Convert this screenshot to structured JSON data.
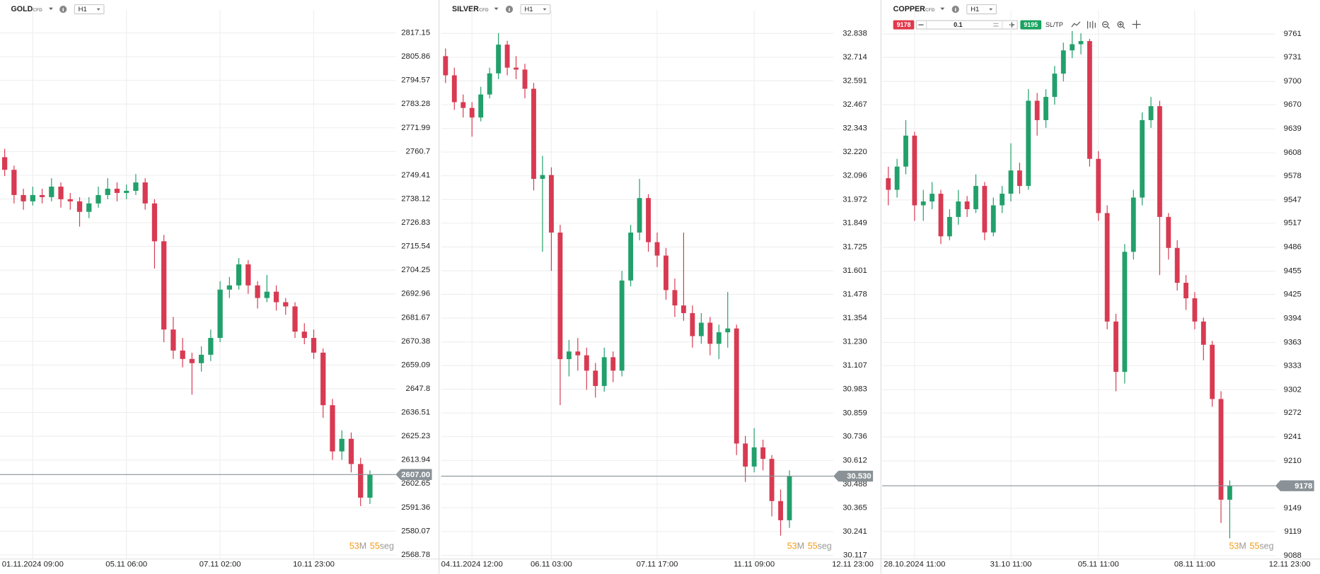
{
  "countdown": {
    "minutes": 53,
    "minutes_unit": "M",
    "seconds": 55,
    "seconds_unit": "seg"
  },
  "trade_panel": {
    "sell_price": 9178,
    "quantity": 0.1,
    "buy_price": 9195,
    "sl_tp": "SL/TP"
  },
  "chart_data": [
    {
      "type": "candlestick",
      "title": "GOLD",
      "instrument_type": "CFD",
      "timeframe": "H1",
      "up_color": "#22a06b",
      "down_color": "#d83a52",
      "grid": true,
      "last_price": {
        "value": 2607,
        "label": "2607.00"
      },
      "categories": [
        null,
        null,
        null,
        "01.11.2024 09:00",
        null,
        null,
        null,
        null,
        null,
        null,
        null,
        null,
        null,
        "05.11 06:00",
        null,
        null,
        null,
        null,
        null,
        null,
        null,
        null,
        null,
        "07.11 02:00",
        null,
        null,
        null,
        null,
        null,
        null,
        null,
        null,
        null,
        "10.11 23:00",
        null,
        null,
        null,
        null,
        null,
        null
      ],
      "open": [
        2758,
        2752,
        2740,
        2737,
        2740,
        2739,
        2744,
        2738,
        2737,
        2732,
        2736,
        2740,
        2743,
        2741,
        2742,
        2746,
        2736,
        2718,
        2676,
        2666,
        2662,
        2660,
        2664,
        2672,
        2695,
        2697,
        2707,
        2697,
        2691,
        2694,
        2689,
        2687,
        2675,
        2672,
        2665,
        2640,
        2618,
        2624,
        2612,
        2596
      ],
      "high": [
        2762,
        2754,
        2743,
        2744,
        2743,
        2748,
        2746,
        2741,
        2739,
        2739,
        2744,
        2748,
        2746,
        2745,
        2750,
        2748,
        2738,
        2721,
        2682,
        2672,
        2665,
        2668,
        2676,
        2699,
        2701,
        2710,
        2709,
        2699,
        2702,
        2697,
        2691,
        2689,
        2679,
        2676,
        2667,
        2643,
        2628,
        2627,
        2615,
        2609
      ],
      "low": [
        2749,
        2736,
        2733,
        2735,
        2736,
        2737,
        2734,
        2733,
        2725,
        2729,
        2734,
        2738,
        2737,
        2738,
        2740,
        2733,
        2705,
        2670,
        2662,
        2658,
        2645,
        2656,
        2661,
        2670,
        2691,
        2695,
        2693,
        2686,
        2689,
        2685,
        2683,
        2672,
        2669,
        2662,
        2634,
        2614,
        2614,
        2608,
        2592,
        2593
      ],
      "close": [
        2752,
        2740,
        2737,
        2740,
        2739,
        2744,
        2738,
        2737,
        2732,
        2736,
        2740,
        2743,
        2741,
        2742,
        2746,
        2736,
        2718,
        2676,
        2666,
        2662,
        2660,
        2664,
        2672,
        2695,
        2697,
        2707,
        2697,
        2691,
        2694,
        2689,
        2687,
        2675,
        2672,
        2665,
        2640,
        2618,
        2624,
        2612,
        2596,
        2607
      ],
      "ylim": [
        2567,
        2828
      ],
      "yticks": [
        2817.15,
        2805.86,
        2794.57,
        2783.28,
        2771.99,
        2760.7,
        2749.41,
        2738.12,
        2726.83,
        2715.54,
        2704.25,
        2692.96,
        2681.67,
        2670.38,
        2659.09,
        2647.8,
        2636.51,
        2625.23,
        2613.94,
        2602.65,
        2591.36,
        2580.07,
        2568.78
      ]
    },
    {
      "type": "candlestick",
      "title": "SILVER",
      "instrument_type": "CFD",
      "timeframe": "H1",
      "up_color": "#22a06b",
      "down_color": "#d83a52",
      "grid": true,
      "last_price": {
        "value": 30.53,
        "label": "30.530"
      },
      "current_time_label": "12.11 23:00",
      "categories": [
        null,
        null,
        null,
        "04.11.2024 12:00",
        null,
        null,
        null,
        null,
        null,
        null,
        null,
        null,
        "06.11 03:00",
        null,
        null,
        null,
        null,
        null,
        null,
        null,
        null,
        null,
        null,
        null,
        "07.11 17:00",
        null,
        null,
        null,
        null,
        null,
        null,
        null,
        null,
        null,
        null,
        "11.11 09:00",
        null,
        null,
        null,
        null
      ],
      "open": [
        32.72,
        32.62,
        32.48,
        32.45,
        32.4,
        32.52,
        32.63,
        32.78,
        32.66,
        32.65,
        32.55,
        32.08,
        32.1,
        31.8,
        31.14,
        31.18,
        31.16,
        31.08,
        31.0,
        31.15,
        31.08,
        31.55,
        31.8,
        31.98,
        31.75,
        31.68,
        31.5,
        31.42,
        31.38,
        31.26,
        31.33,
        31.22,
        31.28,
        31.3,
        30.7,
        30.58,
        30.68,
        30.62,
        30.4,
        30.3
      ],
      "high": [
        32.76,
        32.66,
        32.52,
        32.48,
        32.56,
        32.66,
        32.84,
        32.8,
        32.72,
        32.68,
        32.58,
        32.2,
        32.14,
        31.84,
        31.24,
        31.25,
        31.2,
        31.12,
        31.2,
        31.18,
        31.6,
        31.84,
        32.08,
        32.0,
        31.8,
        31.72,
        31.56,
        31.8,
        31.42,
        31.38,
        31.36,
        31.32,
        31.49,
        31.32,
        30.74,
        30.78,
        30.72,
        30.64,
        30.46,
        30.56
      ],
      "low": [
        32.58,
        32.44,
        32.4,
        32.3,
        32.38,
        32.5,
        32.6,
        32.62,
        32.6,
        32.5,
        32.02,
        31.7,
        31.6,
        30.9,
        31.05,
        31.08,
        30.98,
        30.94,
        30.97,
        31.02,
        31.05,
        31.52,
        31.76,
        31.7,
        31.62,
        31.45,
        31.36,
        31.34,
        31.2,
        31.22,
        31.16,
        31.14,
        31.2,
        30.64,
        30.5,
        30.55,
        30.56,
        30.32,
        30.22,
        30.26
      ],
      "close": [
        32.62,
        32.48,
        32.45,
        32.4,
        32.52,
        32.63,
        32.78,
        32.66,
        32.65,
        32.55,
        32.08,
        32.1,
        31.8,
        31.14,
        31.18,
        31.16,
        31.08,
        31.0,
        31.15,
        31.08,
        31.55,
        31.8,
        31.98,
        31.75,
        31.68,
        31.5,
        31.42,
        31.38,
        31.26,
        31.33,
        31.22,
        31.28,
        31.3,
        30.7,
        30.58,
        30.68,
        30.62,
        30.4,
        30.3,
        30.53
      ],
      "ylim": [
        30.1,
        32.96
      ],
      "yticks": [
        32.838,
        32.714,
        32.591,
        32.467,
        32.343,
        {
          "value": 32.22,
          "label": "32.220"
        },
        32.096,
        31.972,
        31.849,
        31.725,
        31.601,
        31.478,
        31.354,
        {
          "value": 31.23,
          "label": "31.230"
        },
        31.107,
        30.983,
        30.859,
        30.736,
        30.612,
        30.488,
        30.365,
        30.241,
        30.117
      ]
    },
    {
      "type": "candlestick",
      "title": "COPPER",
      "instrument_type": "CFD",
      "timeframe": "H1",
      "up_color": "#22a06b",
      "down_color": "#d83a52",
      "grid": true,
      "last_price": 9178,
      "current_time_label": "12.11 23:00",
      "categories": [
        null,
        null,
        null,
        "28.10.2024 11:00",
        null,
        null,
        null,
        null,
        null,
        null,
        null,
        null,
        null,
        null,
        "31.10 11:00",
        null,
        null,
        null,
        null,
        null,
        null,
        null,
        null,
        null,
        "05.11 11:00",
        null,
        null,
        null,
        null,
        null,
        null,
        null,
        null,
        null,
        null,
        "08.11 11:00",
        null,
        null,
        null,
        null
      ],
      "open": [
        9575,
        9560,
        9590,
        9630,
        9540,
        9545,
        9555,
        9500,
        9525,
        9545,
        9535,
        9565,
        9505,
        9540,
        9555,
        9585,
        9565,
        9675,
        9650,
        9680,
        9710,
        9740,
        9748,
        9752,
        9600,
        9530,
        9390,
        9325,
        9480,
        9550,
        9650,
        9668,
        9525,
        9485,
        9440,
        9420,
        9390,
        9360,
        9290,
        9160
      ],
      "high": [
        9590,
        9600,
        9650,
        9635,
        9560,
        9570,
        9560,
        9535,
        9560,
        9552,
        9580,
        9570,
        9550,
        9565,
        9620,
        9595,
        9690,
        9685,
        9690,
        9720,
        9750,
        9765,
        9762,
        9755,
        9610,
        9540,
        9400,
        9490,
        9560,
        9660,
        9680,
        9675,
        9530,
        9495,
        9450,
        9428,
        9395,
        9365,
        9300,
        9185
      ],
      "low": [
        9540,
        9550,
        9580,
        9520,
        9520,
        9535,
        9490,
        9495,
        9515,
        9525,
        9530,
        9495,
        9500,
        9530,
        9545,
        9555,
        9560,
        9630,
        9640,
        9670,
        9700,
        9730,
        9735,
        9590,
        9520,
        9380,
        9300,
        9310,
        9470,
        9540,
        9640,
        9450,
        9470,
        9430,
        9405,
        9380,
        9340,
        9280,
        9130,
        9110
      ],
      "close": [
        9560,
        9590,
        9630,
        9540,
        9545,
        9555,
        9500,
        9525,
        9545,
        9535,
        9565,
        9505,
        9540,
        9555,
        9585,
        9565,
        9675,
        9650,
        9680,
        9710,
        9740,
        9748,
        9752,
        9600,
        9530,
        9390,
        9325,
        9480,
        9550,
        9650,
        9668,
        9525,
        9485,
        9440,
        9420,
        9390,
        9360,
        9290,
        9160,
        9178
      ],
      "ylim": [
        9084,
        9792
      ],
      "yticks": [
        9761,
        9731,
        9700,
        9670,
        9639,
        9608,
        9578,
        9547,
        9517,
        9486,
        9455,
        9425,
        9394,
        9363,
        9333,
        9302,
        9272,
        9241,
        9210,
        9149,
        9119,
        9088
      ]
    }
  ]
}
